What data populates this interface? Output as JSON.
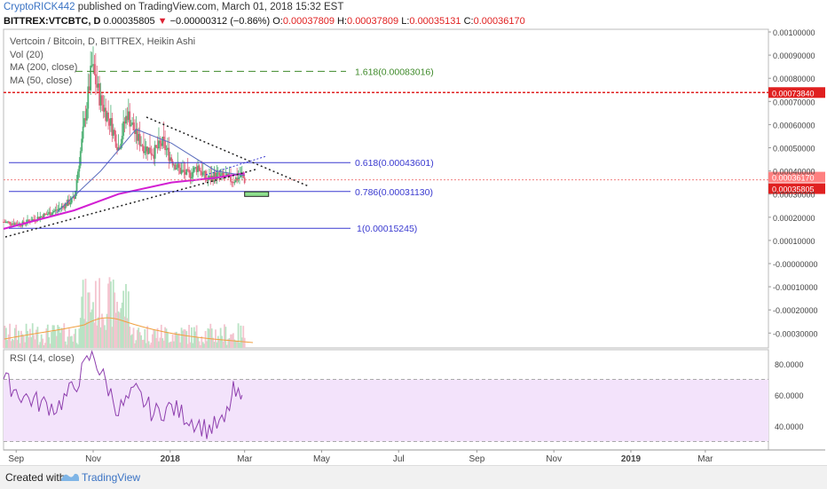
{
  "header": {
    "author": "CryptoRICK442",
    "published": "published on TradingView.com, March 01, 2018 15:32 EST",
    "symbol": "BITTREX:VTCBTC, D",
    "last": "0.00035805",
    "change_arrow": "▼",
    "change": "−0.00000312 (−0.86%)",
    "o_label": "O:",
    "o": "0.00037809",
    "h_label": "H:",
    "h": "0.00037809",
    "l_label": "L:",
    "l": "0.00035131",
    "c_label": "C:",
    "c": "0.00036170"
  },
  "legend": {
    "title": "Vertcoin / Bitcoin, D, BITTREX, Heikin Ashi",
    "vol": "Vol (20)",
    "ma200": "MA (200, close)",
    "ma50": "MA (50, close)"
  },
  "rsi_label": "RSI (14, close)",
  "footer": {
    "created": "Created with",
    "brand": "TradingView"
  },
  "colors": {
    "up": "#4caf72",
    "down": "#e0607a",
    "ma200": "#d21fd2",
    "ma50": "#5b6dbd",
    "fib": "#3a3ad0",
    "fib_ext": "#3f8a2a",
    "rsi": "#8e3fae",
    "rsi_band": "#f3e3fb",
    "level": "#e02020"
  },
  "chart_data": [
    {
      "type": "line",
      "title": "Vertcoin / Bitcoin, D, BITTREX, Heikin Ashi",
      "x_tick_labels": [
        "Sep",
        "Nov",
        "2018",
        "Mar",
        "May",
        "Jul",
        "Sep",
        "Nov",
        "2019",
        "Mar"
      ],
      "y_tick_labels": [
        "0.00100000",
        "0.00090000",
        "0.00080000",
        "0.00070000",
        "0.00060000",
        "0.00050000",
        "0.00040000",
        "0.00030000",
        "0.00020000",
        "0.00010000",
        "-0.00000000",
        "-0.00010000",
        "-0.00020000",
        "-0.00030000"
      ],
      "ylim": [
        -0.00035,
        0.00102
      ],
      "series": [
        {
          "name": "Heikin Ashi close (approx.)",
          "x": [
            "2017-08-22",
            "2017-09-05",
            "2017-09-19",
            "2017-10-03",
            "2017-10-17",
            "2017-10-31",
            "2017-11-07",
            "2017-11-14",
            "2017-11-21",
            "2017-11-28",
            "2017-12-05",
            "2017-12-12",
            "2017-12-19",
            "2017-12-26",
            "2018-01-02",
            "2018-01-09",
            "2018-01-16",
            "2018-01-23",
            "2018-01-30",
            "2018-02-06",
            "2018-02-13",
            "2018-02-20",
            "2018-02-27",
            "2018-03-01"
          ],
          "values": [
            0.00018,
            0.00017,
            0.0002,
            0.00023,
            0.00028,
            0.00085,
            0.0007,
            0.00062,
            0.0005,
            0.00065,
            0.00055,
            0.0005,
            0.00048,
            0.00052,
            0.00045,
            0.0004,
            0.00038,
            0.00042,
            0.00036,
            0.00038,
            0.00037,
            0.00036,
            0.00038,
            0.00036
          ]
        },
        {
          "name": "MA (200, close)",
          "x": [
            "2017-08-22",
            "2017-10-17",
            "2017-11-21",
            "2018-01-02",
            "2018-02-06",
            "2018-03-01"
          ],
          "values": [
            0.00015,
            0.00023,
            0.0003,
            0.00035,
            0.00037,
            0.00039
          ]
        },
        {
          "name": "MA (50, close)",
          "x": [
            "2017-10-03",
            "2017-11-07",
            "2017-12-05",
            "2018-01-02",
            "2018-02-06",
            "2018-03-01"
          ],
          "values": [
            0.00022,
            0.0004,
            0.00058,
            0.00052,
            0.0004,
            0.00038
          ]
        }
      ],
      "fib_levels": [
        {
          "label": "1.618(0.00083016)",
          "value": 0.00083016
        },
        {
          "label": "0.618(0.00043601)",
          "value": 0.00043601
        },
        {
          "label": "0.786(0.00031130)",
          "value": 0.0003113
        },
        {
          "label": "1(0.00015245)",
          "value": 0.00015245
        }
      ],
      "price_labels": [
        {
          "label": "0.00073840",
          "value": 0.0007384
        },
        {
          "label": "0.00036170",
          "value": 0.0003617
        },
        {
          "label": "0.00035805",
          "value": 0.00035805
        }
      ],
      "target_box": {
        "x": [
          "2018-03-01",
          "2018-03-20"
        ],
        "y": [
          0.00029,
          0.00031
        ]
      }
    },
    {
      "type": "line",
      "title": "RSI (14, close)",
      "y_tick_labels": [
        "80.0000",
        "60.0000",
        "40.0000"
      ],
      "ylim": [
        28,
        88
      ],
      "bands": [
        70,
        30
      ],
      "series": [
        {
          "name": "RSI (14, close)",
          "x": [
            "2017-08-22",
            "2017-09-05",
            "2017-09-19",
            "2017-10-03",
            "2017-10-17",
            "2017-10-31",
            "2017-11-07",
            "2017-11-21",
            "2017-12-05",
            "2017-12-19",
            "2018-01-02",
            "2018-01-16",
            "2018-01-30",
            "2018-02-13",
            "2018-02-20",
            "2018-02-27",
            "2018-03-01"
          ],
          "values": [
            70,
            60,
            55,
            52,
            65,
            87,
            75,
            50,
            62,
            48,
            52,
            45,
            38,
            42,
            62,
            55,
            40
          ]
        }
      ]
    }
  ]
}
